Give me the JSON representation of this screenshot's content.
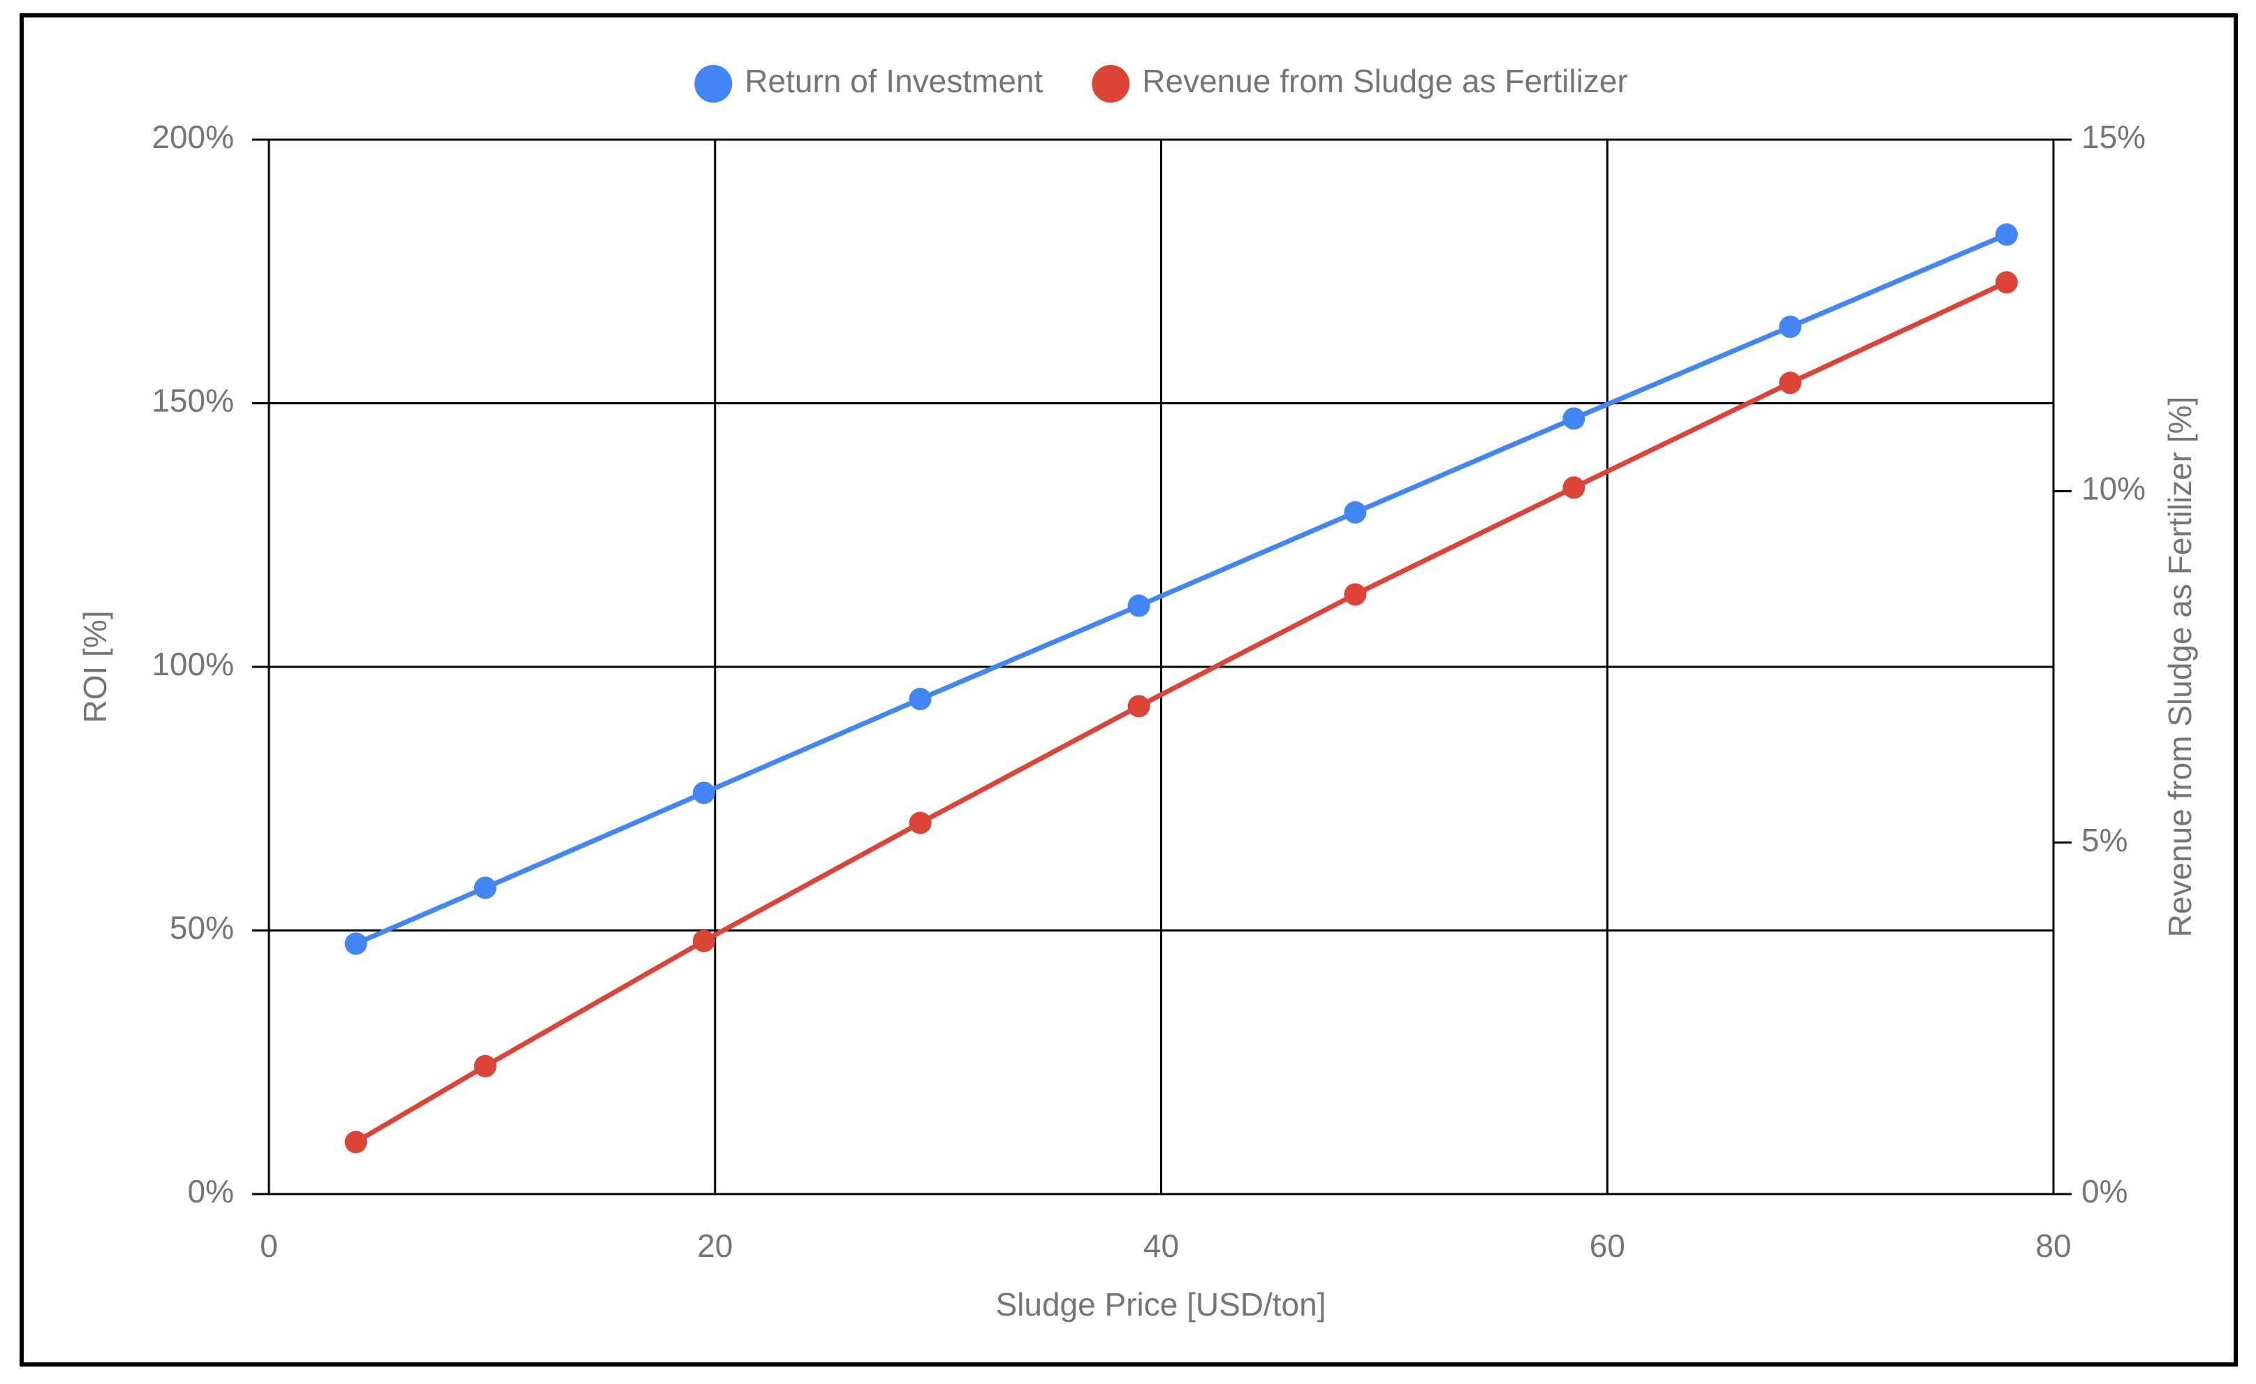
{
  "chart_data": {
    "type": "line",
    "x_label": "Sludge Price [USD/ton]",
    "y_label": "ROI [%]",
    "y2_label": "Revenue from Sludge as Fertilizer [%]",
    "x": [
      3.9,
      9.7,
      19.5,
      29.2,
      39,
      48.7,
      58.5,
      68.2,
      77.9
    ],
    "series": [
      {
        "name": "Return of Investment",
        "color": "#4285f4",
        "values": [
          47.5,
          58.1,
          76.1,
          93.9,
          111.6,
          129.3,
          147.1,
          164.5,
          182.0
        ]
      },
      {
        "name": "Revenue from Sludge as Fertilizer",
        "color": "#db4437",
        "axis": "y2",
        "values": [
          0.74,
          1.82,
          3.6,
          5.28,
          6.94,
          8.53,
          10.05,
          11.54,
          12.97
        ]
      }
    ],
    "xlim": [
      0,
      80
    ],
    "xticks": [
      0,
      20,
      40,
      60,
      80
    ],
    "ylim": [
      0,
      200
    ],
    "yticks": [
      {
        "value": 0,
        "label": "0%"
      },
      {
        "value": 50,
        "label": "50%"
      },
      {
        "value": 100,
        "label": "100%"
      },
      {
        "value": 150,
        "label": "150%"
      },
      {
        "value": 200,
        "label": "200%"
      }
    ],
    "y2lim": [
      0,
      15
    ],
    "y2ticks": [
      {
        "value": 0,
        "label": "0%"
      },
      {
        "value": 5,
        "label": "5%"
      },
      {
        "value": 10,
        "label": "10%"
      },
      {
        "value": 15,
        "label": "15%"
      }
    ],
    "grid": true,
    "legend": "top"
  }
}
